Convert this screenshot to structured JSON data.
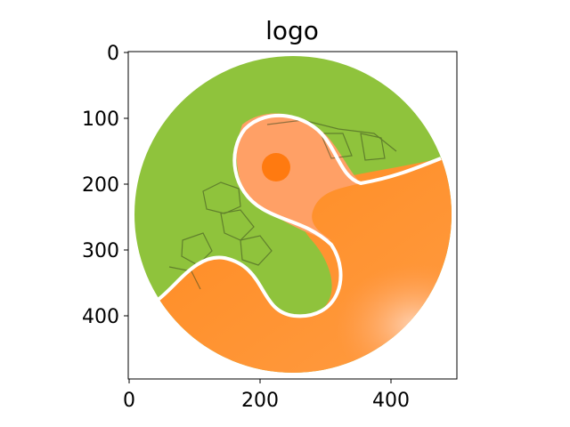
{
  "figure": {
    "title": "logo",
    "x_tick_labels": [
      "0",
      "200",
      "400"
    ],
    "y_tick_labels": [
      "0",
      "100",
      "200",
      "300",
      "400"
    ]
  },
  "image": {
    "x_range": [
      0,
      500
    ],
    "y_range": [
      0,
      500
    ],
    "y_inverted": true,
    "description_colors": {
      "green": "#8fc33c",
      "orange": "#ff8a1e",
      "light_orange": "#ffb07a",
      "outline": "#ffffff"
    }
  }
}
